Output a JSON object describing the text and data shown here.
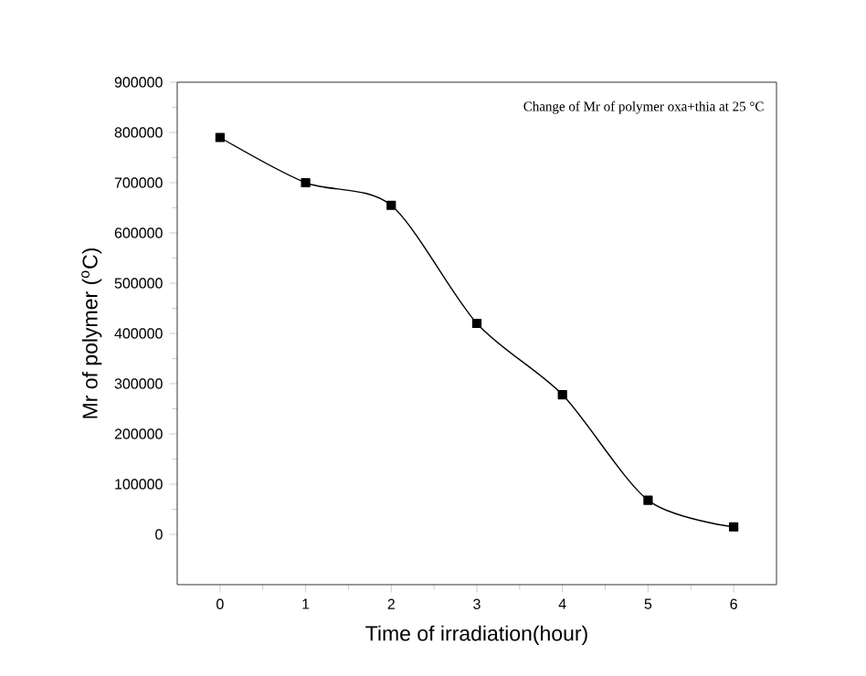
{
  "chart_data": {
    "type": "line",
    "xlabel": "Time of irradiation(hour)",
    "ylabel": "Mr of polymer ($^{o}$C)",
    "annotations": [
      "Change of Mr of polymer oxa+thia at 25 °C"
    ],
    "x": [
      0,
      1,
      2,
      3,
      4,
      5,
      6
    ],
    "series": [
      {
        "color": "#000000",
        "values": [
          790000,
          700000,
          655000,
          420000,
          278000,
          68000,
          15000
        ]
      }
    ],
    "xlim": [
      -0.5,
      6.5
    ],
    "ylim": [
      -100000,
      900000
    ],
    "xticks": [
      0,
      1,
      2,
      3,
      4,
      5,
      6
    ],
    "yticks": [
      0,
      100000,
      200000,
      300000,
      400000,
      500000,
      600000,
      700000,
      800000,
      900000
    ],
    "marker": "square",
    "line_style": "solid"
  }
}
